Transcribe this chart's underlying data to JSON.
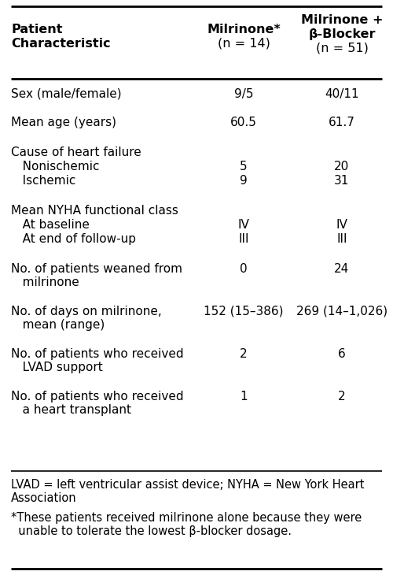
{
  "bg_color": "#ffffff",
  "col1_header_line1": "Patient",
  "col1_header_line2": "Characteristic",
  "col2_header_line1": "Milrinone*",
  "col2_header_line2": "(n = 14)",
  "col3_header_line1": "Milrinone +",
  "col3_header_line2": "β-Blocker",
  "col3_header_line3": "(n = 51)",
  "rows": [
    {
      "label": "Sex (male/female)",
      "label2": "",
      "indent": 0,
      "val1": "9/5",
      "val2": "40/11"
    },
    {
      "label": "Mean age (years)",
      "label2": "",
      "indent": 0,
      "val1": "60.5",
      "val2": "61.7"
    },
    {
      "label": "Cause of heart failure",
      "label2": "",
      "indent": 0,
      "val1": "",
      "val2": ""
    },
    {
      "label": "   Nonischemic",
      "label2": "",
      "indent": 0,
      "val1": "5",
      "val2": "20"
    },
    {
      "label": "   Ischemic",
      "label2": "",
      "indent": 0,
      "val1": "9",
      "val2": "31"
    },
    {
      "label": "Mean NYHA functional class",
      "label2": "",
      "indent": 0,
      "val1": "",
      "val2": ""
    },
    {
      "label": "   At baseline",
      "label2": "",
      "indent": 0,
      "val1": "IV",
      "val2": "IV"
    },
    {
      "label": "   At end of follow-up",
      "label2": "",
      "indent": 0,
      "val1": "III",
      "val2": "III"
    },
    {
      "label": "No. of patients weaned from",
      "label2": "   milrinone",
      "indent": 0,
      "val1": "0",
      "val2": "24"
    },
    {
      "label": "No. of days on milrinone,",
      "label2": "   mean (range)",
      "indent": 0,
      "val1": "152 (15–386)",
      "val2": "269 (14–1,026)"
    },
    {
      "label": "No. of patients who received",
      "label2": "   LVAD support",
      "indent": 0,
      "val1": "2",
      "val2": "6"
    },
    {
      "label": "No. of patients who received",
      "label2": "   a heart transplant",
      "indent": 0,
      "val1": "1",
      "val2": "2"
    }
  ],
  "footnote1": "LVAD = left ventricular assist device; NYHA = New York Heart\nAssociation",
  "footnote2": "*These patients received milrinone alone because they were\n  unable to tolerate the lowest β-blocker dosage.",
  "font_family": "DejaVu Sans",
  "header_fontsize": 11.5,
  "body_fontsize": 11.0,
  "footnote_fontsize": 10.5
}
